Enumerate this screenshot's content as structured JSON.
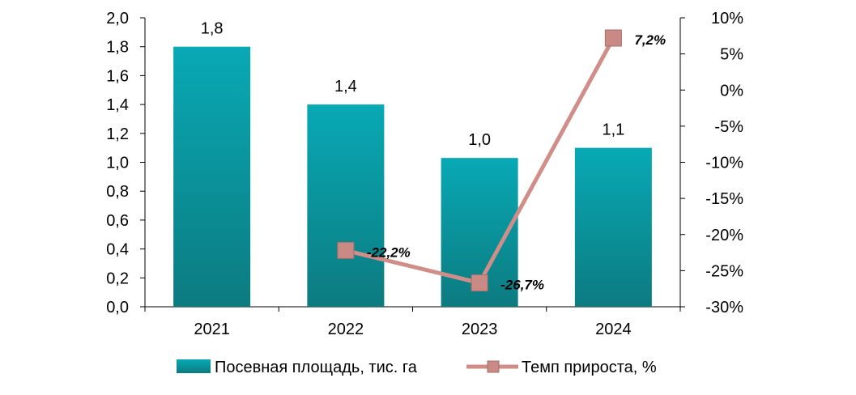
{
  "chart_data": {
    "type": "bar",
    "categories": [
      "2021",
      "2022",
      "2023",
      "2024"
    ],
    "series": [
      {
        "name": "Посевная площадь, тис. га",
        "type": "bar",
        "axis": "left",
        "values": [
          1.8,
          1.4,
          1.03,
          1.1
        ],
        "labels": [
          "1,8",
          "1,4",
          "1,0",
          "1,1"
        ],
        "color": "#1aa3ad"
      },
      {
        "name": "Темп прироста, %",
        "type": "line",
        "axis": "right",
        "values": [
          null,
          -22.2,
          -26.7,
          7.2
        ],
        "labels": [
          null,
          "-22,2%",
          "-26,7%",
          "7,2%"
        ],
        "color": "#d18e89"
      }
    ],
    "y_left": {
      "ylim": [
        0,
        2.0
      ],
      "ticks": [
        "0,0",
        "0,2",
        "0,4",
        "0,6",
        "0,8",
        "1,0",
        "1,2",
        "1,4",
        "1,6",
        "1,8",
        "2,0"
      ]
    },
    "y_right": {
      "ylim": [
        -30,
        10
      ],
      "ticks": [
        "-30%",
        "-25%",
        "-20%",
        "-15%",
        "-10%",
        "-5%",
        "0%",
        "5%",
        "10%"
      ]
    },
    "grid": false,
    "legend_position": "bottom"
  }
}
